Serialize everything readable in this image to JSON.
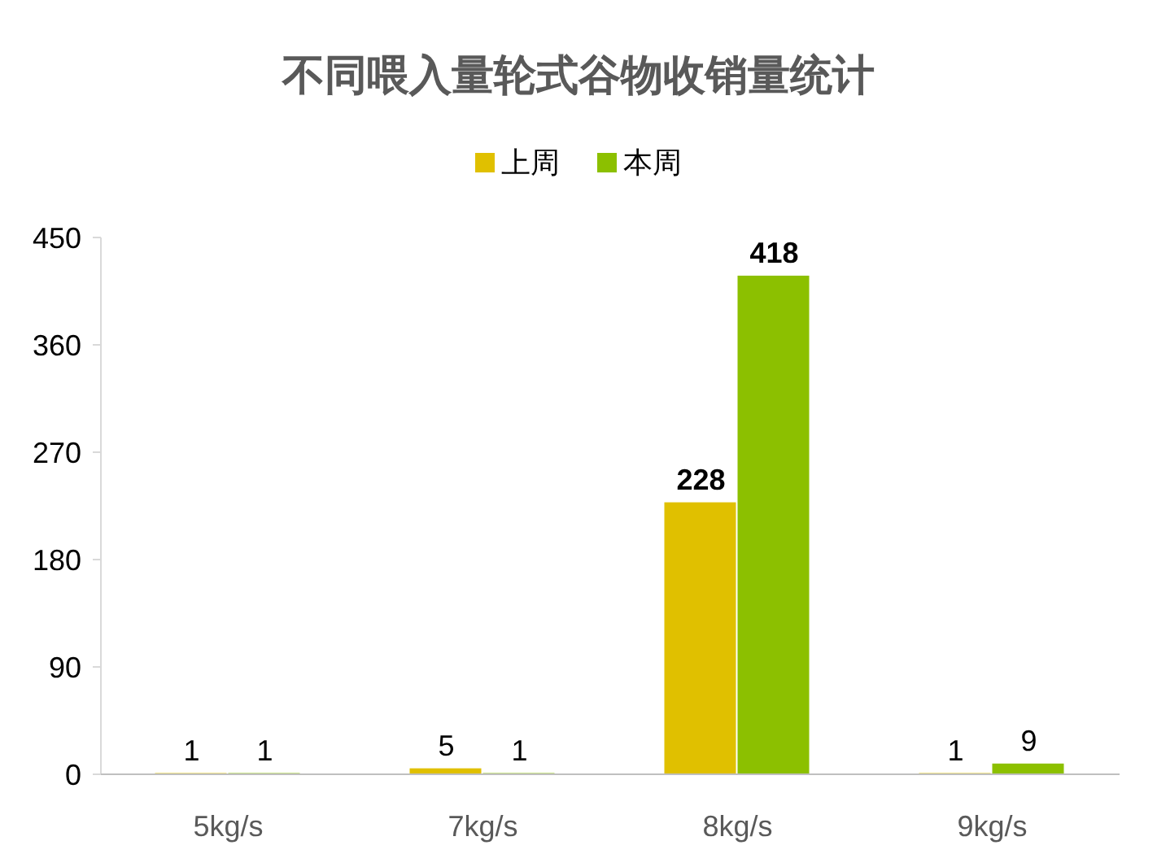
{
  "chart_data": {
    "type": "bar",
    "title": "不同喂入量轮式谷物收销量统计",
    "categories": [
      "5kg/s",
      "7kg/s",
      "8kg/s",
      "9kg/s"
    ],
    "series": [
      {
        "name": "上周",
        "color": "#e0c000",
        "values": [
          1,
          5,
          228,
          1
        ]
      },
      {
        "name": "本周",
        "color": "#8cc000",
        "values": [
          1,
          1,
          418,
          9
        ]
      }
    ],
    "ylim": [
      0,
      450
    ],
    "yticks": [
      0,
      90,
      180,
      270,
      360,
      450
    ],
    "data_labels": true,
    "legend": "top",
    "grid": false
  }
}
